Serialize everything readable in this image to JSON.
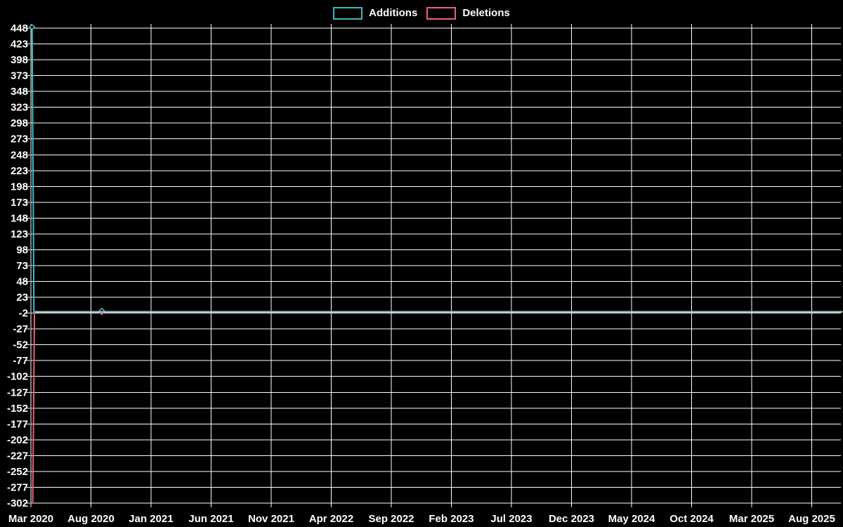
{
  "legend": {
    "additions_label": "Additions",
    "deletions_label": "Deletions"
  },
  "chart_data": {
    "type": "line",
    "title": "",
    "xlabel": "",
    "ylabel": "",
    "background_color": "#000000",
    "grid": {
      "enabled": true,
      "color": "#ffffff",
      "text_color": "#ffffff"
    },
    "legend_position": "top-center",
    "legend": [
      {
        "label": "Additions",
        "color": "#3cb8c2"
      },
      {
        "label": "Deletions",
        "color": "#ec5f7d"
      }
    ],
    "x_axis": {
      "unit": "months since Mar 2020",
      "tick_interval_months": 5,
      "tick_labels": [
        "Mar 2020",
        "Aug 2020",
        "Jan 2021",
        "Jun 2021",
        "Nov 2021",
        "Apr 2022",
        "Sep 2022",
        "Feb 2023",
        "Jul 2023",
        "Dec 2023",
        "May 2024",
        "Oct 2024",
        "Mar 2025",
        "Aug 2025"
      ]
    },
    "y_axis": {
      "min": -302,
      "max": 448,
      "tick_step": 25,
      "tick_labels": [
        448,
        423,
        398,
        373,
        348,
        323,
        298,
        273,
        248,
        223,
        198,
        173,
        148,
        123,
        98,
        73,
        48,
        23,
        -2,
        -27,
        -52,
        -77,
        -102,
        -127,
        -152,
        -177,
        -202,
        -227,
        -252,
        -277,
        -302
      ]
    },
    "series": [
      {
        "name": "Additions",
        "color": "#3fc0ca",
        "line_width": 2,
        "points": [
          [
            0.1,
            448
          ],
          [
            0.25,
            0
          ],
          [
            5.9,
            0
          ],
          [
            67.55,
            0
          ]
        ],
        "markers": [
          [
            0.1,
            448
          ],
          [
            5.9,
            0
          ]
        ]
      },
      {
        "name": "Deletions",
        "color": "#ec5f7d",
        "line_width": 2,
        "points": [
          [
            0.15,
            -302
          ],
          [
            0.3,
            0
          ],
          [
            5.9,
            0
          ],
          [
            67.55,
            0
          ]
        ],
        "markers": [
          [
            5.9,
            0
          ]
        ]
      }
    ],
    "overlap_line": {
      "comment_color_of_flat_overlapping_zero_lines": "#a9c0c9",
      "color": "#a9c0c9",
      "value": 0,
      "from_month": 0.35,
      "to_month": 67.55
    }
  }
}
